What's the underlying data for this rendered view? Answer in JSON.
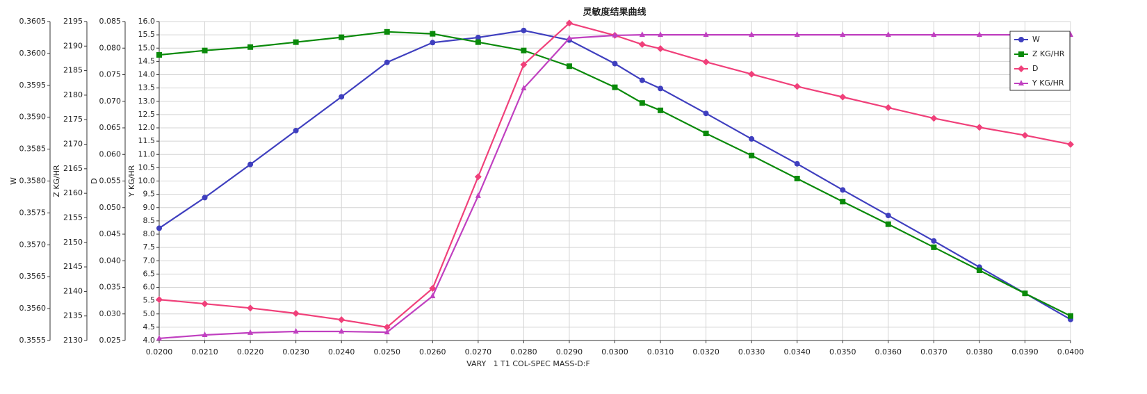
{
  "chart_data": {
    "type": "line",
    "title": "灵敏度结果曲线",
    "x_label": "VARY   1 T1 COL-SPEC MASS-D:F",
    "x": [
      0.02,
      0.021,
      0.022,
      0.023,
      0.024,
      0.025,
      0.026,
      0.027,
      0.028,
      0.029,
      0.03,
      0.0306,
      0.031,
      0.032,
      0.033,
      0.034,
      0.035,
      0.036,
      0.037,
      0.038,
      0.039,
      0.04
    ],
    "xlim": [
      0.02,
      0.04
    ],
    "xticks": [
      {
        "value": 0.02,
        "label": "0.0200"
      },
      {
        "value": 0.021,
        "label": "0.0210"
      },
      {
        "value": 0.022,
        "label": "0.0220"
      },
      {
        "value": 0.023,
        "label": "0.0230"
      },
      {
        "value": 0.024,
        "label": "0.0240"
      },
      {
        "value": 0.025,
        "label": "0.0250"
      },
      {
        "value": 0.026,
        "label": "0.0260"
      },
      {
        "value": 0.027,
        "label": "0.0270"
      },
      {
        "value": 0.028,
        "label": "0.0280"
      },
      {
        "value": 0.029,
        "label": "0.0290"
      },
      {
        "value": 0.03,
        "label": "0.0300"
      },
      {
        "value": 0.031,
        "label": "0.0310"
      },
      {
        "value": 0.032,
        "label": "0.0320"
      },
      {
        "value": 0.033,
        "label": "0.0330"
      },
      {
        "value": 0.034,
        "label": "0.0340"
      },
      {
        "value": 0.035,
        "label": "0.0350"
      },
      {
        "value": 0.036,
        "label": "0.0360"
      },
      {
        "value": 0.037,
        "label": "0.0370"
      },
      {
        "value": 0.038,
        "label": "0.0380"
      },
      {
        "value": 0.039,
        "label": "0.0390"
      },
      {
        "value": 0.04,
        "label": "0.0400"
      }
    ],
    "grid": true,
    "legend": "upper right",
    "y_axes": [
      {
        "label": "W",
        "lim": [
          0.3555,
          0.3605
        ],
        "ticks": [
          0.3555,
          {
            "value": 0.356,
            "label": "0.3560"
          },
          0.3565,
          {
            "value": 0.357,
            "label": "0.3570"
          },
          0.3575,
          {
            "value": 0.358,
            "label": "0.3580"
          },
          0.3585,
          {
            "value": 0.359,
            "label": "0.3590"
          },
          0.3595,
          {
            "value": 0.36,
            "label": "0.3600"
          },
          0.3605
        ]
      },
      {
        "label": "Z KG/HR",
        "lim": [
          2130,
          2195
        ],
        "ticks": [
          2130,
          2135,
          2140,
          2145,
          2150,
          2155,
          2160,
          2165,
          2170,
          2175,
          2180,
          2185,
          2190,
          2195
        ]
      },
      {
        "label": "D",
        "lim": [
          0.025,
          0.085
        ],
        "ticks": [
          0.025,
          {
            "value": 0.03,
            "label": "0.030"
          },
          0.035,
          {
            "value": 0.04,
            "label": "0.040"
          },
          0.045,
          {
            "value": 0.05,
            "label": "0.050"
          },
          0.055,
          {
            "value": 0.06,
            "label": "0.060"
          },
          0.065,
          {
            "value": 0.07,
            "label": "0.070"
          },
          0.075,
          {
            "value": 0.08,
            "label": "0.080"
          },
          0.085
        ]
      },
      {
        "label": "Y KG/HR",
        "lim": [
          4,
          16
        ],
        "ticks": [
          {
            "value": 4,
            "label": "4.0"
          },
          4.5,
          {
            "value": 5,
            "label": "5.0"
          },
          5.5,
          {
            "value": 6,
            "label": "6.0"
          },
          6.5,
          {
            "value": 7,
            "label": "7.0"
          },
          7.5,
          {
            "value": 8,
            "label": "8.0"
          },
          8.5,
          {
            "value": 9,
            "label": "9.0"
          },
          9.5,
          {
            "value": 10,
            "label": "10.0"
          },
          10.5,
          {
            "value": 11,
            "label": "11.0"
          },
          11.5,
          {
            "value": 12,
            "label": "12.0"
          },
          12.5,
          {
            "value": 13,
            "label": "13.0"
          },
          13.5,
          {
            "value": 14,
            "label": "14.0"
          },
          14.5,
          {
            "value": 15,
            "label": "15.0"
          },
          15.5,
          {
            "value": 16,
            "label": "16.0"
          }
        ]
      }
    ],
    "series": [
      {
        "name": "W",
        "color": "#3f3fbf",
        "marker": "circle",
        "axis": 0,
        "values": [
          0.35726,
          0.35774,
          0.35826,
          0.35879,
          0.35932,
          0.35986,
          0.36017,
          0.36025,
          0.36036,
          0.36021,
          0.35984,
          0.35958,
          0.35945,
          0.35906,
          0.35866,
          0.35827,
          0.35786,
          0.35746,
          0.35706,
          0.35665,
          0.35624,
          0.35583
        ]
      },
      {
        "name": "Z KG/HR",
        "color": "#0a8a0a",
        "marker": "square",
        "axis": 1,
        "values": [
          2188.2,
          2189.1,
          2189.8,
          2190.8,
          2191.8,
          2192.9,
          2192.5,
          2190.8,
          2189.1,
          2185.9,
          2181.6,
          2178.4,
          2176.9,
          2172.2,
          2167.7,
          2163.0,
          2158.3,
          2153.7,
          2149.0,
          2144.3,
          2139.6,
          2135.0
        ]
      },
      {
        "name": "D",
        "color": "#f0407a",
        "marker": "diamond",
        "axis": 2,
        "values": [
          0.0327,
          0.0319,
          0.0311,
          0.0301,
          0.0289,
          0.0275,
          0.0348,
          0.0558,
          0.0769,
          0.0847,
          0.0824,
          0.0807,
          0.0799,
          0.0774,
          0.0751,
          0.0728,
          0.0708,
          0.0688,
          0.0668,
          0.0651,
          0.0636,
          0.0619
        ]
      },
      {
        "name": "Y KG/HR",
        "color": "#c040c0",
        "marker": "triangle",
        "axis": 3,
        "values": [
          4.08,
          4.21,
          4.29,
          4.34,
          4.34,
          4.31,
          5.67,
          9.44,
          13.49,
          15.37,
          15.48,
          15.5,
          15.5,
          15.5,
          15.5,
          15.5,
          15.5,
          15.5,
          15.5,
          15.5,
          15.5,
          15.5
        ]
      }
    ]
  }
}
